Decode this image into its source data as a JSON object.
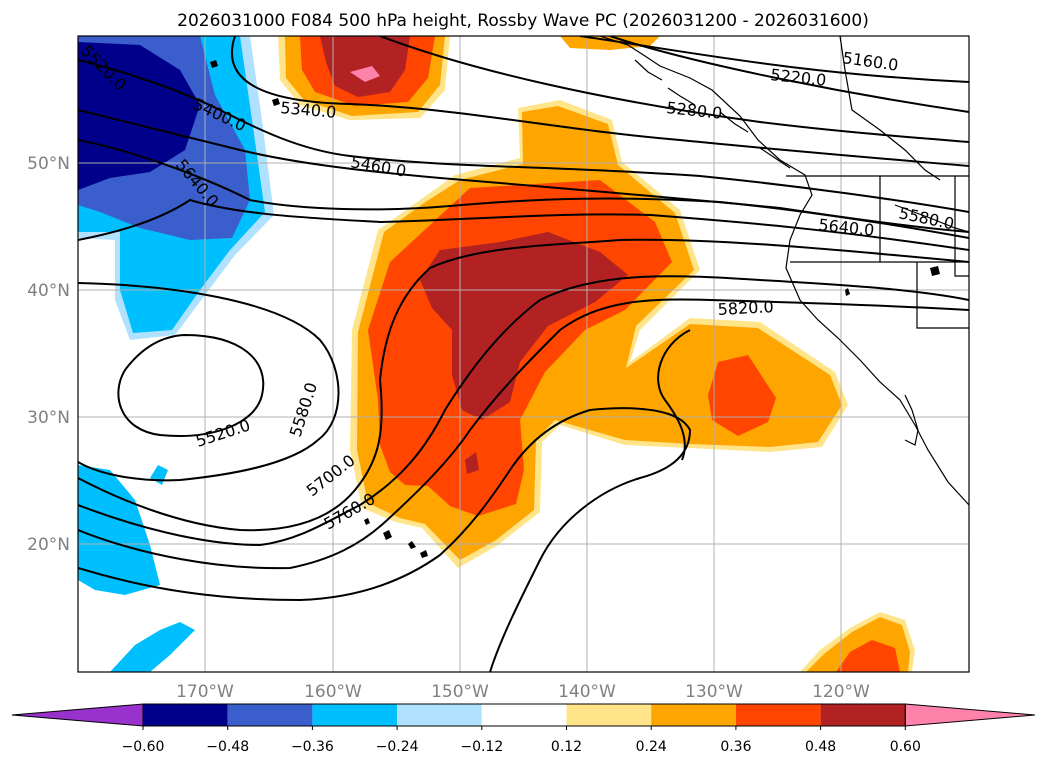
{
  "title": "2026031000 F084 500 hPa height, Rossby Wave PC (2026031200 - 2026031600)",
  "lat_labels": [
    "50°N",
    "40°N",
    "30°N",
    "20°N"
  ],
  "lon_labels": [
    "170°W",
    "160°W",
    "150°W",
    "140°W",
    "130°W",
    "120°W"
  ],
  "contour_labels": [
    "5160.0",
    "5220.0",
    "5280.0",
    "5340.0",
    "5400.0",
    "5460.0",
    "5520.0",
    "5580.0",
    "5580.0",
    "5640.0",
    "5640.0",
    "5700.0",
    "5760.0",
    "5820.0",
    "5520.0"
  ],
  "colorbar": {
    "tick_labels": [
      "−0.60",
      "−0.48",
      "−0.36",
      "−0.24",
      "−0.12",
      "0.12",
      "0.24",
      "0.36",
      "0.48",
      "0.60"
    ],
    "colors": [
      "#9932cc",
      "#00008b",
      "#3a5fcd",
      "#00bfff",
      "#b0e2ff",
      "#ffffff",
      "#ffe48a",
      "#ffa500",
      "#ff4500",
      "#b22222",
      "#ff82ab"
    ]
  }
}
